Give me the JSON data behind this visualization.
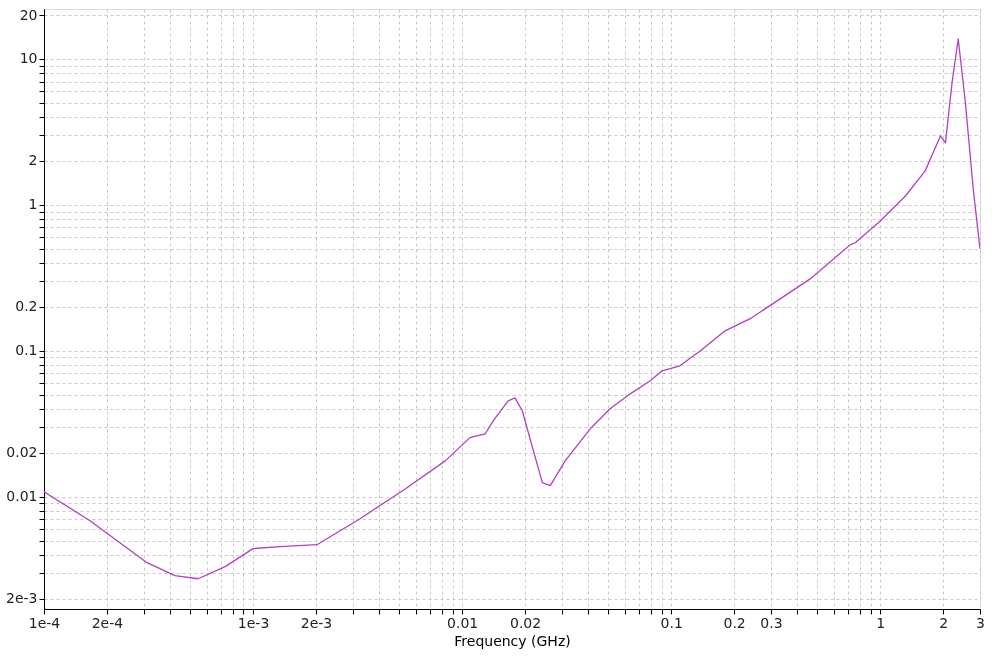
{
  "chart_data": {
    "type": "line",
    "xlabel": "Frequency (GHz)",
    "log": "xy",
    "grid": true,
    "marker": "none",
    "line_style": "solid",
    "xlim": [
      0.0001,
      3
    ],
    "ylim": [
      0.0017,
      22
    ],
    "xticks": [
      {
        "value": 0.0001,
        "label": "1e-4"
      },
      {
        "value": 0.0002,
        "label": "2e-4"
      },
      {
        "value": 0.0003,
        "label": null
      },
      {
        "value": 0.0004,
        "label": null
      },
      {
        "value": 0.0005,
        "label": null
      },
      {
        "value": 0.0006,
        "label": null
      },
      {
        "value": 0.0007,
        "label": null
      },
      {
        "value": 0.0008,
        "label": null
      },
      {
        "value": 0.0009,
        "label": null
      },
      {
        "value": 0.001,
        "label": "1e-3"
      },
      {
        "value": 0.002,
        "label": "2e-3"
      },
      {
        "value": 0.003,
        "label": null
      },
      {
        "value": 0.004,
        "label": null
      },
      {
        "value": 0.005,
        "label": null
      },
      {
        "value": 0.006,
        "label": null
      },
      {
        "value": 0.007,
        "label": null
      },
      {
        "value": 0.008,
        "label": null
      },
      {
        "value": 0.009,
        "label": null
      },
      {
        "value": 0.01,
        "label": "0.01"
      },
      {
        "value": 0.02,
        "label": "0.02"
      },
      {
        "value": 0.03,
        "label": null
      },
      {
        "value": 0.04,
        "label": null
      },
      {
        "value": 0.05,
        "label": null
      },
      {
        "value": 0.06,
        "label": null
      },
      {
        "value": 0.07,
        "label": null
      },
      {
        "value": 0.08,
        "label": null
      },
      {
        "value": 0.09,
        "label": null
      },
      {
        "value": 0.1,
        "label": "0.1"
      },
      {
        "value": 0.2,
        "label": "0.2"
      },
      {
        "value": 0.3,
        "label": "0.3"
      },
      {
        "value": 0.4,
        "label": null
      },
      {
        "value": 0.5,
        "label": null
      },
      {
        "value": 0.6,
        "label": null
      },
      {
        "value": 0.7,
        "label": null
      },
      {
        "value": 0.8,
        "label": null
      },
      {
        "value": 0.9,
        "label": null
      },
      {
        "value": 1,
        "label": "1"
      },
      {
        "value": 2,
        "label": "2"
      },
      {
        "value": 3,
        "label": "3"
      }
    ],
    "yticks": [
      {
        "value": 0.002,
        "label": "2e-3"
      },
      {
        "value": 0.003,
        "label": null
      },
      {
        "value": 0.004,
        "label": null
      },
      {
        "value": 0.005,
        "label": null
      },
      {
        "value": 0.006,
        "label": null
      },
      {
        "value": 0.007,
        "label": null
      },
      {
        "value": 0.008,
        "label": null
      },
      {
        "value": 0.009,
        "label": null
      },
      {
        "value": 0.01,
        "label": "0.01"
      },
      {
        "value": 0.02,
        "label": "0.02"
      },
      {
        "value": 0.03,
        "label": null
      },
      {
        "value": 0.04,
        "label": null
      },
      {
        "value": 0.05,
        "label": null
      },
      {
        "value": 0.06,
        "label": null
      },
      {
        "value": 0.07,
        "label": null
      },
      {
        "value": 0.08,
        "label": null
      },
      {
        "value": 0.09,
        "label": null
      },
      {
        "value": 0.1,
        "label": "0.1"
      },
      {
        "value": 0.2,
        "label": "0.2"
      },
      {
        "value": 0.3,
        "label": null
      },
      {
        "value": 0.4,
        "label": null
      },
      {
        "value": 0.5,
        "label": null
      },
      {
        "value": 0.6,
        "label": null
      },
      {
        "value": 0.7,
        "label": null
      },
      {
        "value": 0.8,
        "label": null
      },
      {
        "value": 0.9,
        "label": null
      },
      {
        "value": 1,
        "label": "1"
      },
      {
        "value": 2,
        "label": "2"
      },
      {
        "value": 3,
        "label": null
      },
      {
        "value": 4,
        "label": null
      },
      {
        "value": 5,
        "label": null
      },
      {
        "value": 6,
        "label": null
      },
      {
        "value": 7,
        "label": null
      },
      {
        "value": 8,
        "label": null
      },
      {
        "value": 9,
        "label": null
      },
      {
        "value": 10,
        "label": "10"
      },
      {
        "value": 20,
        "label": "20"
      }
    ],
    "x": [
      0.0001,
      0.000166,
      0.000311,
      0.000423,
      0.000546,
      0.000735,
      0.001,
      0.00135,
      0.00202,
      0.00325,
      0.00534,
      0.0083,
      0.0109,
      0.0129,
      0.0141,
      0.0166,
      0.0179,
      0.0194,
      0.0216,
      0.0242,
      0.0264,
      0.0311,
      0.041,
      0.051,
      0.0637,
      0.0794,
      0.0906,
      0.11,
      0.138,
      0.181,
      0.239,
      0.332,
      0.462,
      0.718,
      0.759,
      1.0,
      1.32,
      1.64,
      1.94,
      2.05,
      2.21,
      2.36,
      2.55,
      2.79,
      3.0
    ],
    "series": [
      {
        "color": "#b040c0",
        "values": [
          0.0108,
          0.00685,
          0.00353,
          0.00288,
          0.00274,
          0.00332,
          0.00441,
          0.00455,
          0.00469,
          0.00707,
          0.0113,
          0.0176,
          0.0254,
          0.027,
          0.0332,
          0.0454,
          0.0476,
          0.0388,
          0.0223,
          0.0125,
          0.0119,
          0.0176,
          0.0292,
          0.0401,
          0.0507,
          0.0623,
          0.0729,
          0.0789,
          0.1,
          0.137,
          0.166,
          0.227,
          0.311,
          0.532,
          0.55,
          0.776,
          1.15,
          1.71,
          2.97,
          2.66,
          7.06,
          13.7,
          5.15,
          1.25,
          0.5
        ]
      }
    ]
  }
}
